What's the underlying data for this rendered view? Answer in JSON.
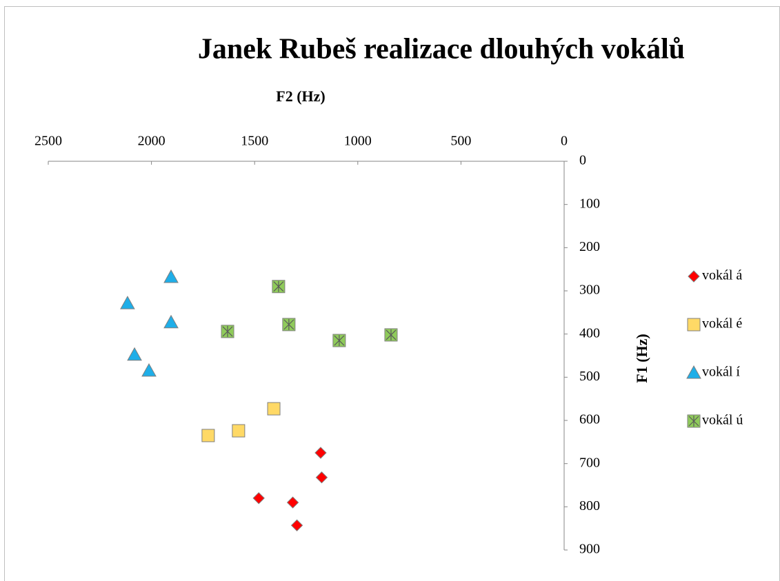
{
  "chart_data": {
    "type": "scatter",
    "title": "Janek Rubeš realizace dlouhých vokálů",
    "x_label": "F2 (Hz)",
    "y_label": "F1 (Hz)",
    "xlim": [
      2500,
      0
    ],
    "ylim": [
      0,
      900
    ],
    "y_inverted": true,
    "xticks": [
      2500,
      2000,
      1500,
      1000,
      500,
      0
    ],
    "yticks": [
      0,
      100,
      200,
      300,
      400,
      500,
      600,
      700,
      800,
      900
    ],
    "legend": "right",
    "series": [
      {
        "name": "vokál á",
        "color": "#ff0000",
        "marker": "diamond",
        "x": [
          1180,
          1175,
          1480,
          1315,
          1295
        ],
        "values": [
          675,
          732,
          780,
          790,
          843
        ]
      },
      {
        "name": "vokál é",
        "color": "#ffd966",
        "marker": "square",
        "x": [
          1407,
          1578,
          1725
        ],
        "values": [
          573,
          624,
          635
        ]
      },
      {
        "name": "vokál í",
        "color": "#1faee8",
        "marker": "triangle",
        "x": [
          1905,
          2116,
          1905,
          2082,
          2012
        ],
        "values": [
          268,
          329,
          373,
          448,
          485
        ]
      },
      {
        "name": "vokál ú",
        "color": "#8fcb5a",
        "marker": "star-square",
        "x": [
          1384,
          1334,
          1631,
          1090,
          839
        ],
        "values": [
          290,
          378,
          394,
          415,
          402
        ]
      }
    ]
  }
}
